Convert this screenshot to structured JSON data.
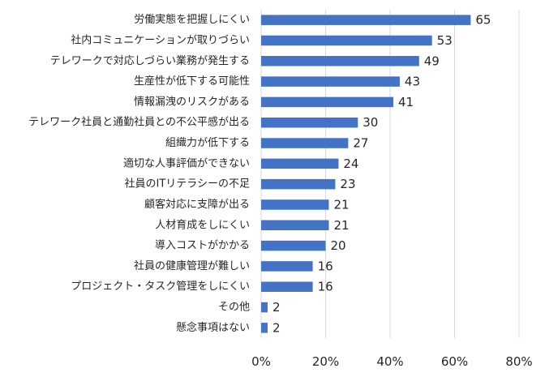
{
  "chart_data": {
    "type": "bar",
    "orientation": "horizontal",
    "categories": [
      "労働実態を把握しにくい",
      "社内コミュニケーションが取りづらい",
      "テレワークで対応しづらい業務が発生する",
      "生産性が低下する可能性",
      "情報漏洩のリスクがある",
      "テレワーク社員と通勤社員との不公平感が出る",
      "組織力が低下する",
      "適切な人事評価ができない",
      "社員のITリテラシーの不足",
      "顧客対応に支障が出る",
      "人材育成をしにくい",
      "導入コストがかかる",
      "社員の健康管理が難しい",
      "プロジェクト・タスク管理をしにくい",
      "その他",
      "懸念事項はない"
    ],
    "values": [
      65,
      53,
      49,
      43,
      41,
      30,
      27,
      24,
      23,
      21,
      21,
      20,
      16,
      16,
      2,
      2
    ],
    "xlim": [
      0,
      80
    ],
    "xticks": [
      0,
      20,
      40,
      60,
      80
    ],
    "xtick_labels": [
      "0%",
      "20%",
      "40%",
      "60%",
      "80%"
    ],
    "bar_color": "#4472c4",
    "grid": true
  }
}
